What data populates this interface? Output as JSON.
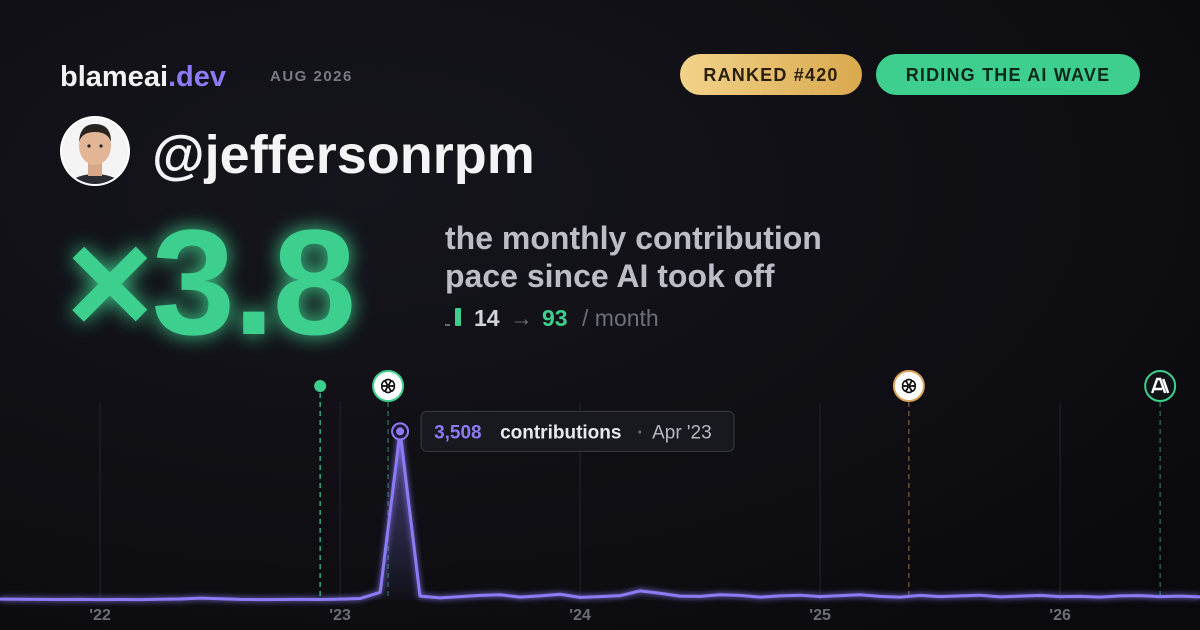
{
  "brand": {
    "name": "blameai",
    "tld": ".dev",
    "date": "AUG 2026"
  },
  "badges": [
    "RANKED #420",
    "RIDING THE AI WAVE"
  ],
  "username": "@jeffersonrpm",
  "multiplier_prefix": "×",
  "multiplier": 3.8,
  "headline": [
    "the monthly contribution",
    "pace since AI took off"
  ],
  "pace": {
    "before": 14,
    "arrow": "→",
    "after": 93,
    "unit": "/ month"
  },
  "chart_data": {
    "type": "line",
    "x": [
      2021.583,
      2021.667,
      2021.75,
      2021.833,
      2021.917,
      2022,
      2022.083,
      2022.167,
      2022.25,
      2022.333,
      2022.417,
      2022.5,
      2022.583,
      2022.667,
      2022.75,
      2022.833,
      2022.917,
      2023,
      2023.083,
      2023.167,
      2023.25,
      2023.333,
      2023.417,
      2023.5,
      2023.583,
      2023.667,
      2023.75,
      2023.833,
      2023.917,
      2024,
      2024.083,
      2024.167,
      2024.25,
      2024.333,
      2024.417,
      2024.5,
      2024.583,
      2024.667,
      2024.75,
      2024.833,
      2024.917,
      2025,
      2025.083,
      2025.167,
      2025.25,
      2025.333,
      2025.417,
      2025.5,
      2025.583,
      2025.667,
      2025.75,
      2025.833,
      2025.917,
      2026,
      2026.083,
      2026.167,
      2026.25,
      2026.333,
      2026.417,
      2026.5,
      2026.583
    ],
    "series": [
      {
        "name": "contributions",
        "color": "#8b7cf6",
        "values": [
          18,
          16,
          12,
          10,
          14,
          8,
          11,
          9,
          15,
          22,
          38,
          25,
          12,
          9,
          11,
          14,
          10,
          19,
          30,
          160,
          3508,
          80,
          45,
          70,
          95,
          110,
          60,
          85,
          120,
          55,
          70,
          90,
          190,
          140,
          80,
          75,
          110,
          95,
          60,
          85,
          100,
          70,
          90,
          110,
          75,
          60,
          95,
          70,
          85,
          100,
          65,
          80,
          95,
          70,
          75,
          60,
          85,
          90,
          70,
          80,
          65
        ]
      }
    ],
    "xlim": [
      2021.583,
      2026.583
    ],
    "ylim": [
      0,
      3600
    ],
    "xticks": [
      {
        "value": 2022,
        "label": "'22"
      },
      {
        "value": 2023,
        "label": "'23"
      },
      {
        "value": 2024,
        "label": "'24"
      },
      {
        "value": 2025,
        "label": "'25"
      },
      {
        "value": 2026,
        "label": "'26"
      }
    ],
    "grid": true,
    "events": [
      {
        "x": 2022.917,
        "marker": "dot",
        "color": "#3ecf8e"
      },
      {
        "x": 2023.2,
        "marker": "openai",
        "color": "#3ecf8e"
      },
      {
        "x": 2025.37,
        "marker": "openai",
        "color": "#d9a25a"
      },
      {
        "x": 2026.417,
        "marker": "anthropic",
        "color": "#3ecf8e"
      }
    ],
    "tooltip": {
      "x": 2023.25,
      "value": 3508,
      "value_label": "3,508",
      "label": "contributions",
      "separator": "·",
      "date": "Apr '23"
    }
  }
}
